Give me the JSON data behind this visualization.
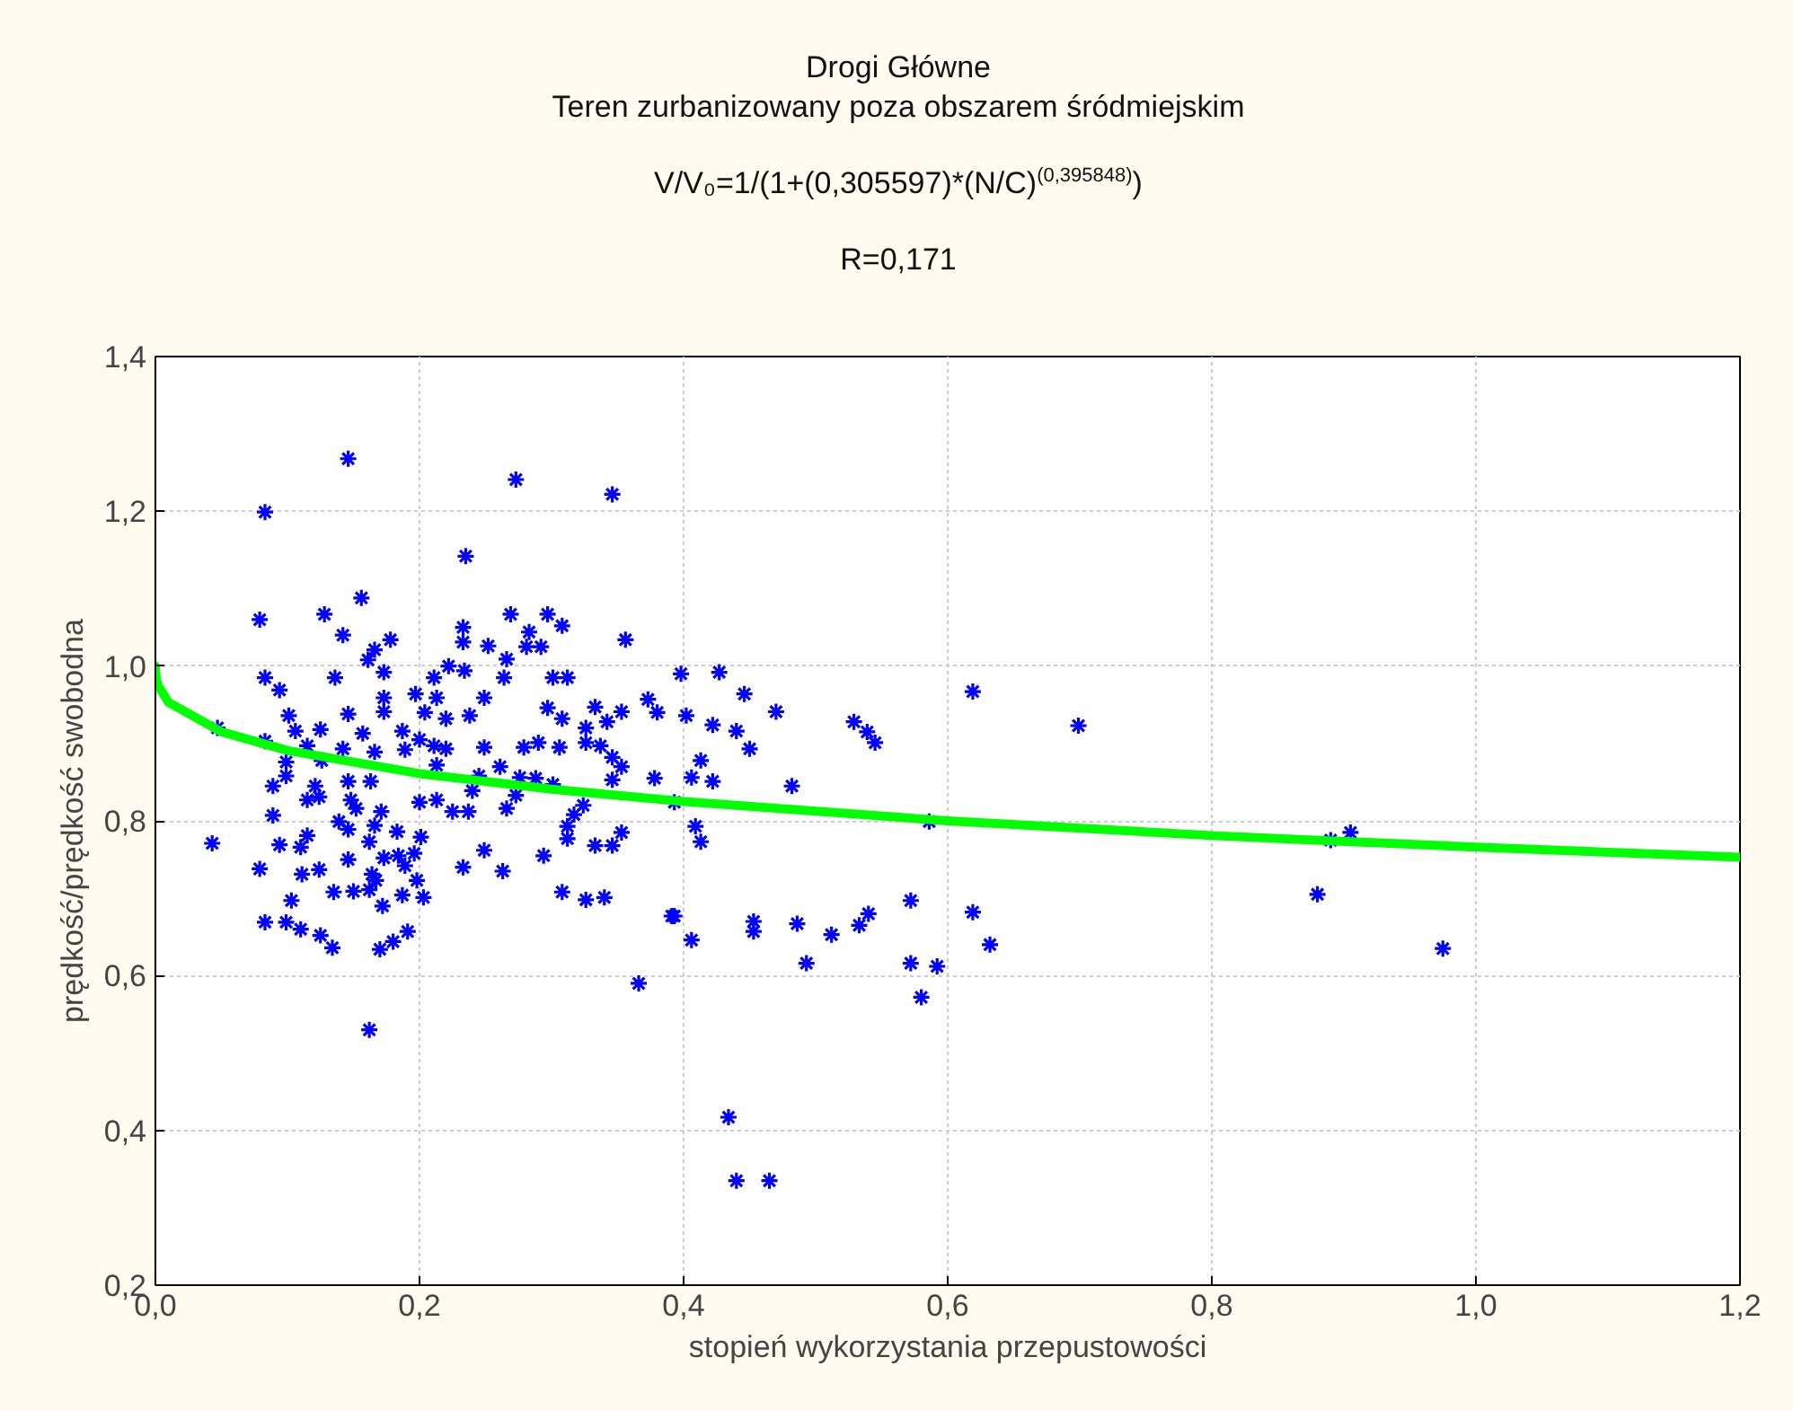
{
  "chart_data": {
    "type": "scatter",
    "title": "Drogi Główne",
    "subtitle": "Teren zurbanizowany poza obszarem śródmiejskim",
    "annotations": [
      "V/V₀=1/(1+(0,305597)*(N/C)$^{(0,395848)}$)",
      "R=0,171"
    ],
    "xlabel": "stopień wykorzystania przepustowości",
    "ylabel": "prędkość/prędkość swobodna",
    "xlim": [
      0,
      1.2
    ],
    "ylim": [
      0.2,
      1.4
    ],
    "xticks": [
      {
        "value": 0,
        "label": "0,0"
      },
      {
        "value": 0.2,
        "label": "0,2"
      },
      {
        "value": 0.4,
        "label": "0,4"
      },
      {
        "value": 0.6,
        "label": "0,6"
      },
      {
        "value": 0.8,
        "label": "0,8"
      },
      {
        "value": 1.0,
        "label": "1,0"
      },
      {
        "value": 1.2,
        "label": "1,2"
      }
    ],
    "yticks": [
      {
        "value": 0.2,
        "label": "0,2"
      },
      {
        "value": 0.4,
        "label": "0,4"
      },
      {
        "value": 0.6,
        "label": "0,6"
      },
      {
        "value": 0.8,
        "label": "0,8"
      },
      {
        "value": 1.0,
        "label": "1,0"
      },
      {
        "value": 1.2,
        "label": "1,2"
      },
      {
        "value": 1.4,
        "label": "1,4"
      }
    ],
    "grid": true,
    "series": [
      {
        "color": "#0000ff",
        "marker": "cross",
        "x": [
          0.146,
          0.083,
          0.273,
          0.346,
          0.235,
          0.156,
          0.079,
          0.128,
          0.142,
          0.178,
          0.166,
          0.161,
          0.233,
          0.233,
          0.252,
          0.269,
          0.283,
          0.297,
          0.308,
          0.266,
          0.281,
          0.292,
          0.356,
          0.083,
          0.094,
          0.136,
          0.173,
          0.222,
          0.234,
          0.211,
          0.264,
          0.301,
          0.312,
          0.173,
          0.197,
          0.213,
          0.249,
          0.297,
          0.333,
          0.353,
          0.373,
          0.38,
          0.047,
          0.101,
          0.106,
          0.146,
          0.173,
          0.204,
          0.22,
          0.238,
          0.308,
          0.326,
          0.342,
          0.125,
          0.157,
          0.187,
          0.083,
          0.115,
          0.142,
          0.166,
          0.189,
          0.211,
          0.2,
          0.22,
          0.249,
          0.279,
          0.29,
          0.306,
          0.326,
          0.337,
          0.099,
          0.126,
          0.213,
          0.261,
          0.346,
          0.353,
          0.099,
          0.089,
          0.121,
          0.146,
          0.163,
          0.245,
          0.276,
          0.288,
          0.346,
          0.378,
          0.115,
          0.124,
          0.148,
          0.152,
          0.171,
          0.2,
          0.213,
          0.225,
          0.237,
          0.24,
          0.266,
          0.273,
          0.301,
          0.324,
          0.317,
          0.089,
          0.139,
          0.146,
          0.166,
          0.183,
          0.201,
          0.043,
          0.094,
          0.11,
          0.115,
          0.162,
          0.173,
          0.184,
          0.196,
          0.146,
          0.249,
          0.312,
          0.312,
          0.333,
          0.346,
          0.353,
          0.294,
          0.079,
          0.111,
          0.124,
          0.164,
          0.189,
          0.233,
          0.263,
          0.167,
          0.198,
          0.135,
          0.15,
          0.162,
          0.187,
          0.203,
          0.308,
          0.326,
          0.34,
          0.103,
          0.172,
          0.083,
          0.099,
          0.11,
          0.125,
          0.134,
          0.17,
          0.18,
          0.191,
          0.366,
          0.162,
          0.391,
          0.398,
          0.427,
          0.446,
          0.47,
          0.402,
          0.422,
          0.44,
          0.45,
          0.413,
          0.406,
          0.422,
          0.482,
          0.393,
          0.409,
          0.413,
          0.529,
          0.539,
          0.545,
          0.619,
          0.699,
          0.586,
          0.393,
          0.406,
          0.453,
          0.453,
          0.486,
          0.493,
          0.512,
          0.533,
          0.54,
          0.572,
          0.572,
          0.592,
          0.58,
          0.619,
          0.632,
          0.434,
          0.44,
          0.465,
          0.88,
          0.89,
          0.905,
          0.975
        ],
        "values": [
          1.268,
          1.199,
          1.241,
          1.222,
          1.142,
          1.088,
          1.06,
          1.067,
          1.04,
          1.034,
          1.021,
          1.008,
          1.05,
          1.031,
          1.026,
          1.067,
          1.044,
          1.067,
          1.052,
          1.009,
          1.025,
          1.025,
          1.034,
          0.985,
          0.969,
          0.985,
          0.992,
          1.0,
          0.994,
          0.985,
          0.985,
          0.985,
          0.985,
          0.959,
          0.964,
          0.959,
          0.959,
          0.946,
          0.947,
          0.941,
          0.957,
          0.94,
          0.92,
          0.936,
          0.916,
          0.938,
          0.941,
          0.94,
          0.932,
          0.936,
          0.932,
          0.92,
          0.928,
          0.918,
          0.913,
          0.916,
          0.903,
          0.897,
          0.893,
          0.889,
          0.892,
          0.897,
          0.905,
          0.893,
          0.895,
          0.895,
          0.901,
          0.895,
          0.901,
          0.897,
          0.876,
          0.878,
          0.872,
          0.87,
          0.882,
          0.87,
          0.858,
          0.845,
          0.845,
          0.851,
          0.851,
          0.858,
          0.856,
          0.855,
          0.853,
          0.855,
          0.827,
          0.831,
          0.827,
          0.816,
          0.812,
          0.824,
          0.827,
          0.812,
          0.812,
          0.839,
          0.816,
          0.833,
          0.847,
          0.82,
          0.808,
          0.807,
          0.799,
          0.789,
          0.794,
          0.786,
          0.779,
          0.771,
          0.769,
          0.766,
          0.781,
          0.773,
          0.752,
          0.755,
          0.758,
          0.75,
          0.762,
          0.793,
          0.777,
          0.768,
          0.768,
          0.785,
          0.755,
          0.738,
          0.731,
          0.737,
          0.731,
          0.742,
          0.74,
          0.735,
          0.723,
          0.723,
          0.708,
          0.709,
          0.711,
          0.704,
          0.701,
          0.708,
          0.698,
          0.701,
          0.697,
          0.69,
          0.669,
          0.669,
          0.66,
          0.652,
          0.636,
          0.634,
          0.644,
          0.657,
          0.59,
          0.53,
          0.677,
          0.99,
          0.992,
          0.964,
          0.941,
          0.936,
          0.924,
          0.916,
          0.893,
          0.878,
          0.856,
          0.851,
          0.845,
          0.824,
          0.793,
          0.773,
          0.928,
          0.915,
          0.901,
          0.967,
          0.923,
          0.799,
          0.677,
          0.646,
          0.67,
          0.657,
          0.667,
          0.616,
          0.653,
          0.665,
          0.68,
          0.697,
          0.616,
          0.612,
          0.572,
          0.682,
          0.64,
          0.417,
          0.335,
          0.335,
          0.705,
          0.775,
          0.785,
          0.635
        ]
      },
      {
        "type": "line",
        "color": "#00ff00",
        "marker": "none",
        "x": [
          0,
          0.0001,
          0.001,
          0.002,
          0.01,
          0.05,
          0.1,
          0.2,
          0.3,
          0.4,
          0.6,
          0.8,
          1.0,
          1.2
        ],
        "values": [
          1.0,
          0.992,
          0.981,
          0.975,
          0.953,
          0.915,
          0.891,
          0.861,
          0.841,
          0.825,
          0.8,
          0.781,
          0.766,
          0.753
        ]
      }
    ]
  }
}
